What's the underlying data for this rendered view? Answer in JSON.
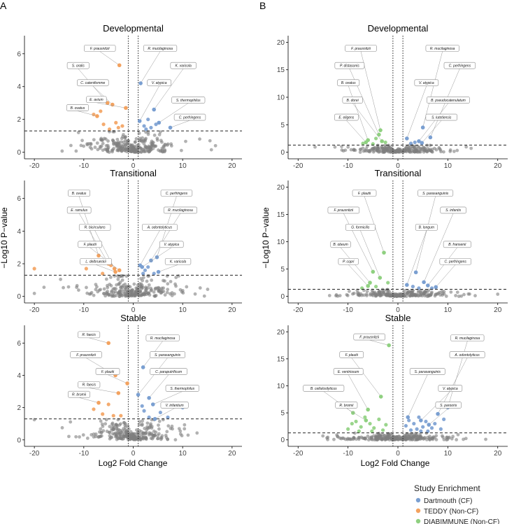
{
  "panel_letters": [
    "A",
    "B"
  ],
  "x_axis_label": "Log2 Fold Change",
  "y_axis_label": "−Log10 P−value",
  "legend": {
    "title": "Study Enrichment",
    "items": [
      {
        "key": "dart",
        "label": "Dartmouth (CF)",
        "color": "#7a9fd1"
      },
      {
        "key": "teddy",
        "label": "TEDDY (Non-CF)",
        "color": "#f3a25f"
      },
      {
        "key": "diab",
        "label": "DIABIMMUNE (Non-CF)",
        "color": "#8fd080"
      }
    ]
  },
  "colors": {
    "ns_point": "#7f7f7f",
    "ns_point_alpha": 0.6,
    "threshold_line": "#222222"
  },
  "chart_data": [
    {
      "type": "scatter",
      "panel": "A",
      "title": "Developmental",
      "xlim": [
        -22,
        22
      ],
      "ylim": [
        -0.4,
        7.1
      ],
      "xticks": [
        -20,
        -10,
        0,
        10,
        20
      ],
      "yticks": [
        0,
        2,
        4,
        6
      ],
      "x_threshold": [
        -1,
        1
      ],
      "y_threshold": 1.3,
      "labeled_points": [
        {
          "name": "F. prausnitzii",
          "x": -2.8,
          "y": 5.3,
          "group": "teddy"
        },
        {
          "name": "S. oralis",
          "x": -5.2,
          "y": 3.0,
          "group": "teddy"
        },
        {
          "name": "C. catenifomme",
          "x": -4.2,
          "y": 2.9,
          "group": "teddy"
        },
        {
          "name": "E. avium",
          "x": -1.5,
          "y": 2.7,
          "group": "teddy"
        },
        {
          "name": "B. ovatus",
          "x": -7.3,
          "y": 2.2,
          "group": "teddy"
        },
        {
          "name": "R. mucilaginosa",
          "x": 1.5,
          "y": 4.2,
          "group": "dart"
        },
        {
          "name": "K. varicola",
          "x": 4.2,
          "y": 2.6,
          "group": "dart"
        },
        {
          "name": "V. atypica",
          "x": 1.3,
          "y": 1.9,
          "group": "dart"
        },
        {
          "name": "S. thermophilus",
          "x": 5.2,
          "y": 1.8,
          "group": "dart"
        },
        {
          "name": "C. perfringens",
          "x": 7.5,
          "y": 1.5,
          "group": "dart"
        }
      ],
      "sig_points": [
        {
          "x": -3.5,
          "y": 1.8,
          "group": "teddy"
        },
        {
          "x": -3.0,
          "y": 1.5,
          "group": "teddy"
        },
        {
          "x": -6.0,
          "y": 1.7,
          "group": "teddy"
        },
        {
          "x": -2.2,
          "y": 1.6,
          "group": "teddy"
        },
        {
          "x": -4.8,
          "y": 1.4,
          "group": "teddy"
        },
        {
          "x": -6.6,
          "y": 2.5,
          "group": "teddy"
        },
        {
          "x": -8.0,
          "y": 2.3,
          "group": "teddy"
        },
        {
          "x": 2.2,
          "y": 1.6,
          "group": "dart"
        },
        {
          "x": 3.0,
          "y": 2.0,
          "group": "dart"
        },
        {
          "x": 3.6,
          "y": 1.5,
          "group": "dart"
        },
        {
          "x": 4.6,
          "y": 1.7,
          "group": "dart"
        },
        {
          "x": 2.6,
          "y": 1.4,
          "group": "dart"
        }
      ],
      "ns_cloud": {
        "n": 260,
        "seed": 11,
        "xspread": 5.0,
        "ymax": 1.25
      }
    },
    {
      "type": "scatter",
      "panel": "A",
      "title": "Transitional",
      "xlim": [
        -22,
        22
      ],
      "ylim": [
        -0.4,
        7.1
      ],
      "xticks": [
        -20,
        -10,
        0,
        10,
        20
      ],
      "yticks": [
        0,
        2,
        4,
        6
      ],
      "x_threshold": [
        -1,
        1
      ],
      "y_threshold": 1.3,
      "labeled_points": [
        {
          "name": "R. bicirculans",
          "x": -3.8,
          "y": 1.7,
          "group": "teddy"
        },
        {
          "name": "E. ramulus",
          "x": -5.0,
          "y": 2.0,
          "group": "teddy"
        },
        {
          "name": "F. plautii",
          "x": -2.8,
          "y": 1.6,
          "group": "teddy"
        },
        {
          "name": "B. ovatus",
          "x": -7.0,
          "y": 2.5,
          "group": "teddy"
        },
        {
          "name": "L. delbrueckii",
          "x": -3.6,
          "y": 1.5,
          "group": "teddy"
        },
        {
          "name": "A. odontolyticus",
          "x": 1.4,
          "y": 1.9,
          "group": "dart"
        },
        {
          "name": "R. mucilaginosa",
          "x": 3.6,
          "y": 2.2,
          "group": "dart"
        },
        {
          "name": "V. atypica",
          "x": 1.8,
          "y": 1.8,
          "group": "dart"
        },
        {
          "name": "C. perfringens",
          "x": 4.8,
          "y": 2.4,
          "group": "dart"
        },
        {
          "name": "K. varicola",
          "x": 5.1,
          "y": 1.5,
          "group": "dart"
        }
      ],
      "sig_points": [
        {
          "x": -20.0,
          "y": 1.7,
          "group": "teddy"
        },
        {
          "x": -9.5,
          "y": 1.7,
          "group": "teddy"
        },
        {
          "x": -6.2,
          "y": 1.4,
          "group": "teddy"
        },
        {
          "x": -4.5,
          "y": 1.9,
          "group": "teddy"
        },
        {
          "x": 2.4,
          "y": 1.6,
          "group": "dart"
        },
        {
          "x": 3.0,
          "y": 1.8,
          "group": "dart"
        },
        {
          "x": 4.2,
          "y": 1.4,
          "group": "dart"
        },
        {
          "x": 2.0,
          "y": 1.4,
          "group": "dart"
        }
      ],
      "ns_cloud": {
        "n": 240,
        "seed": 23,
        "xspread": 5.0,
        "ymax": 1.25
      }
    },
    {
      "type": "scatter",
      "panel": "A",
      "title": "Stable",
      "xlim": [
        -22,
        22
      ],
      "ylim": [
        -0.4,
        7.1
      ],
      "xticks": [
        -20,
        -10,
        0,
        10,
        20
      ],
      "yticks": [
        0,
        2,
        4,
        6
      ],
      "x_threshold": [
        -1,
        1
      ],
      "y_threshold": 1.3,
      "labeled_points": [
        {
          "name": "R. faecis",
          "x": -5.0,
          "y": 6.0,
          "group": "teddy"
        },
        {
          "name": "F. prausnitzii",
          "x": -3.6,
          "y": 4.0,
          "group": "teddy"
        },
        {
          "name": "F. plautii",
          "x": -1.2,
          "y": 3.5,
          "group": "teddy"
        },
        {
          "name": "R. faecis",
          "x": -3.0,
          "y": 2.9,
          "group": "teddy"
        },
        {
          "name": "R. bromii",
          "x": -7.0,
          "y": 2.3,
          "group": "teddy"
        },
        {
          "name": "R. mucilaginosa",
          "x": 2.0,
          "y": 4.5,
          "group": "dart"
        },
        {
          "name": "S. parasanguinis",
          "x": 1.0,
          "y": 2.8,
          "group": "dart"
        },
        {
          "name": "C. paraputrificum",
          "x": 3.2,
          "y": 2.6,
          "group": "dart"
        },
        {
          "name": "S. thermophilus",
          "x": 4.0,
          "y": 2.2,
          "group": "dart"
        },
        {
          "name": "V. infantium",
          "x": 4.4,
          "y": 1.3,
          "group": "dart"
        }
      ],
      "sig_points": [
        {
          "x": -8.0,
          "y": 1.9,
          "group": "teddy"
        },
        {
          "x": -6.2,
          "y": 1.6,
          "group": "teddy"
        },
        {
          "x": -5.0,
          "y": 2.2,
          "group": "teddy"
        },
        {
          "x": -2.5,
          "y": 1.5,
          "group": "teddy"
        },
        {
          "x": -4.0,
          "y": 1.5,
          "group": "teddy"
        },
        {
          "x": 2.2,
          "y": 1.8,
          "group": "dart"
        },
        {
          "x": 1.8,
          "y": 2.1,
          "group": "dart"
        },
        {
          "x": 5.5,
          "y": 1.7,
          "group": "dart"
        },
        {
          "x": 7.0,
          "y": 1.4,
          "group": "dart"
        },
        {
          "x": 10.0,
          "y": 2.0,
          "group": "dart"
        },
        {
          "x": 3.2,
          "y": 1.4,
          "group": "dart"
        }
      ],
      "ns_cloud": {
        "n": 260,
        "seed": 37,
        "xspread": 5.0,
        "ymax": 1.25
      }
    },
    {
      "type": "scatter",
      "panel": "B",
      "title": "Developmental",
      "xlim": [
        -22,
        22
      ],
      "ylim": [
        -1.2,
        21.2
      ],
      "xticks": [
        -20,
        -10,
        0,
        10,
        20
      ],
      "yticks": [
        0,
        5,
        10,
        15,
        20
      ],
      "x_threshold": [
        -1,
        1
      ],
      "y_threshold": 1.3,
      "labeled_points": [
        {
          "name": "F. prausnitzii",
          "x": -3.5,
          "y": 4.0,
          "group": "diab"
        },
        {
          "name": "P. distasonis",
          "x": -3.8,
          "y": 3.2,
          "group": "diab"
        },
        {
          "name": "B. ovatus",
          "x": -6.0,
          "y": 2.2,
          "group": "diab"
        },
        {
          "name": "B. dorei",
          "x": -3.2,
          "y": 2.0,
          "group": "diab"
        },
        {
          "name": "E. eligens",
          "x": -6.4,
          "y": 1.8,
          "group": "diab"
        },
        {
          "name": "R. mucilaginosa",
          "x": 5.0,
          "y": 4.5,
          "group": "dart"
        },
        {
          "name": "V. atypica",
          "x": 1.8,
          "y": 2.5,
          "group": "dart"
        },
        {
          "name": "C. perfringens",
          "x": 6.5,
          "y": 2.7,
          "group": "dart"
        },
        {
          "name": "B. pseudocatenulatum",
          "x": 4.2,
          "y": 2.0,
          "group": "dart"
        },
        {
          "name": "S. lutetiensis",
          "x": 4.8,
          "y": 1.7,
          "group": "dart"
        }
      ],
      "sig_points": [
        {
          "x": -7.0,
          "y": 1.6,
          "group": "diab"
        },
        {
          "x": -5.0,
          "y": 1.5,
          "group": "diab"
        },
        {
          "x": -4.4,
          "y": 2.5,
          "group": "diab"
        },
        {
          "x": -2.5,
          "y": 1.8,
          "group": "diab"
        },
        {
          "x": 2.6,
          "y": 1.6,
          "group": "dart"
        },
        {
          "x": 3.4,
          "y": 1.8,
          "group": "dart"
        }
      ],
      "ns_cloud": {
        "n": 230,
        "seed": 51,
        "xspread": 5.5,
        "ymax": 1.2
      }
    },
    {
      "type": "scatter",
      "panel": "B",
      "title": "Transitional",
      "xlim": [
        -22,
        22
      ],
      "ylim": [
        -1.2,
        21.2
      ],
      "xticks": [
        -20,
        -10,
        0,
        10,
        20
      ],
      "yticks": [
        0,
        5,
        10,
        15,
        20
      ],
      "x_threshold": [
        -1,
        1
      ],
      "y_threshold": 1.3,
      "labeled_points": [
        {
          "name": "F. plautii",
          "x": -2.8,
          "y": 8.0,
          "group": "diab"
        },
        {
          "name": "F. prausnitzii",
          "x": -5.0,
          "y": 4.5,
          "group": "diab"
        },
        {
          "name": "G. formicilis",
          "x": -3.6,
          "y": 3.4,
          "group": "diab"
        },
        {
          "name": "B. obeum",
          "x": -5.6,
          "y": 2.5,
          "group": "diab"
        },
        {
          "name": "P. copri",
          "x": -6.0,
          "y": 1.9,
          "group": "diab"
        },
        {
          "name": "S. parasanguinis",
          "x": 3.6,
          "y": 4.4,
          "group": "dart"
        },
        {
          "name": "B. longum",
          "x": 1.8,
          "y": 2.1,
          "group": "dart"
        },
        {
          "name": "S. infantis",
          "x": 5.2,
          "y": 2.6,
          "group": "dart"
        },
        {
          "name": "B. fransenii",
          "x": 6.0,
          "y": 2.0,
          "group": "dart"
        },
        {
          "name": "C. perfringens",
          "x": 7.6,
          "y": 1.7,
          "group": "dart"
        }
      ],
      "sig_points": [
        {
          "x": -7.2,
          "y": 1.5,
          "group": "diab"
        },
        {
          "x": -4.4,
          "y": 1.8,
          "group": "diab"
        },
        {
          "x": -2.0,
          "y": 2.5,
          "group": "diab"
        },
        {
          "x": 3.0,
          "y": 1.8,
          "group": "dart"
        },
        {
          "x": 4.2,
          "y": 1.5,
          "group": "dart"
        },
        {
          "x": 6.8,
          "y": 1.5,
          "group": "dart"
        }
      ],
      "ns_cloud": {
        "n": 230,
        "seed": 63,
        "xspread": 5.5,
        "ymax": 1.2
      }
    },
    {
      "type": "scatter",
      "panel": "B",
      "title": "Stable",
      "xlim": [
        -22,
        22
      ],
      "ylim": [
        -1.2,
        21.2
      ],
      "xticks": [
        -20,
        -10,
        0,
        10,
        20
      ],
      "yticks": [
        0,
        5,
        10,
        15,
        20
      ],
      "x_threshold": [
        -1,
        1
      ],
      "y_threshold": 1.3,
      "labeled_points": [
        {
          "name": "F. prausnitzii",
          "x": -1.8,
          "y": 17.5,
          "group": "diab"
        },
        {
          "name": "F. plautii",
          "x": -3.4,
          "y": 8.0,
          "group": "diab"
        },
        {
          "name": "E. ventriosum",
          "x": -6.0,
          "y": 5.6,
          "group": "diab"
        },
        {
          "name": "B. cellulosilyticus",
          "x": -9.0,
          "y": 5.0,
          "group": "diab"
        },
        {
          "name": "R. bromii",
          "x": -6.4,
          "y": 3.6,
          "group": "diab"
        },
        {
          "name": "S. parasanguinis",
          "x": 2.0,
          "y": 4.2,
          "group": "dart"
        },
        {
          "name": "V. atypica",
          "x": 4.6,
          "y": 3.6,
          "group": "dart"
        },
        {
          "name": "R. mucilaginosa",
          "x": 10.0,
          "y": 6.0,
          "group": "dart"
        },
        {
          "name": "A. odontolyticus",
          "x": 8.0,
          "y": 4.8,
          "group": "dart"
        },
        {
          "name": "S. parooris",
          "x": 6.2,
          "y": 2.8,
          "group": "dart"
        }
      ],
      "sig_points": [
        {
          "x": -10.0,
          "y": 2.0,
          "group": "diab"
        },
        {
          "x": -8.4,
          "y": 3.4,
          "group": "diab"
        },
        {
          "x": -7.4,
          "y": 2.4,
          "group": "diab"
        },
        {
          "x": -6.6,
          "y": 4.2,
          "group": "diab"
        },
        {
          "x": -5.6,
          "y": 3.0,
          "group": "diab"
        },
        {
          "x": -4.8,
          "y": 2.2,
          "group": "diab"
        },
        {
          "x": -3.8,
          "y": 3.8,
          "group": "diab"
        },
        {
          "x": -3.0,
          "y": 1.8,
          "group": "diab"
        },
        {
          "x": -2.4,
          "y": 2.8,
          "group": "diab"
        },
        {
          "x": -5.2,
          "y": 1.6,
          "group": "diab"
        },
        {
          "x": -7.8,
          "y": 1.6,
          "group": "diab"
        },
        {
          "x": -9.2,
          "y": 3.0,
          "group": "diab"
        },
        {
          "x": 1.6,
          "y": 2.6,
          "group": "dart"
        },
        {
          "x": 2.6,
          "y": 1.8,
          "group": "dart"
        },
        {
          "x": 3.2,
          "y": 3.0,
          "group": "dart"
        },
        {
          "x": 3.8,
          "y": 2.0,
          "group": "dart"
        },
        {
          "x": 4.2,
          "y": 4.2,
          "group": "dart"
        },
        {
          "x": 5.0,
          "y": 2.4,
          "group": "dart"
        },
        {
          "x": 5.6,
          "y": 3.4,
          "group": "dart"
        },
        {
          "x": 6.0,
          "y": 1.6,
          "group": "dart"
        },
        {
          "x": 6.8,
          "y": 2.2,
          "group": "dart"
        },
        {
          "x": 7.4,
          "y": 3.0,
          "group": "dart"
        },
        {
          "x": 8.6,
          "y": 2.0,
          "group": "dart"
        },
        {
          "x": 9.2,
          "y": 3.8,
          "group": "dart"
        },
        {
          "x": 2.2,
          "y": 3.6,
          "group": "dart"
        },
        {
          "x": 4.6,
          "y": 1.6,
          "group": "dart"
        }
      ],
      "ns_cloud": {
        "n": 260,
        "seed": 79,
        "xspread": 6.0,
        "ymax": 1.2
      }
    }
  ]
}
